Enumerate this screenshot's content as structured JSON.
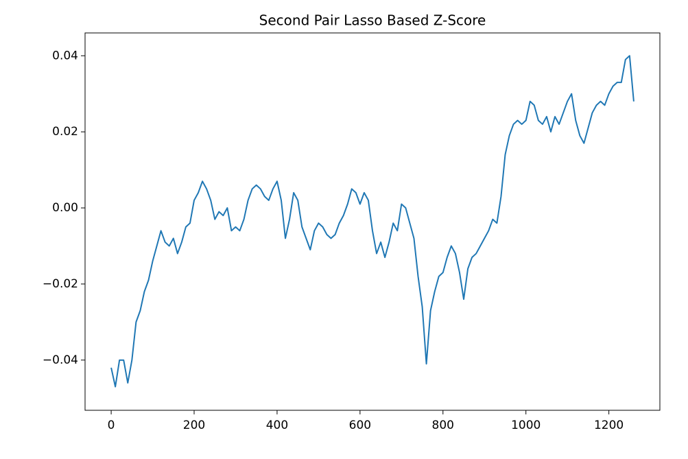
{
  "chart_data": {
    "type": "line",
    "title": "Second Pair Lasso Based Z-Score",
    "x": [
      0,
      10,
      20,
      30,
      40,
      50,
      60,
      70,
      80,
      90,
      100,
      110,
      120,
      130,
      140,
      150,
      160,
      170,
      180,
      190,
      200,
      210,
      220,
      230,
      240,
      250,
      260,
      270,
      280,
      290,
      300,
      310,
      320,
      330,
      340,
      350,
      360,
      370,
      380,
      390,
      400,
      410,
      420,
      430,
      440,
      450,
      460,
      470,
      480,
      490,
      500,
      510,
      520,
      530,
      540,
      550,
      560,
      570,
      580,
      590,
      600,
      610,
      620,
      630,
      640,
      650,
      660,
      670,
      680,
      690,
      700,
      710,
      720,
      730,
      740,
      750,
      760,
      770,
      780,
      790,
      800,
      810,
      820,
      830,
      840,
      850,
      860,
      870,
      880,
      890,
      900,
      910,
      920,
      930,
      940,
      950,
      960,
      970,
      980,
      990,
      1000,
      1010,
      1020,
      1030,
      1040,
      1050,
      1060,
      1070,
      1080,
      1090,
      1100,
      1110,
      1120,
      1130,
      1140,
      1150,
      1160,
      1170,
      1180,
      1190,
      1200,
      1210,
      1220,
      1230,
      1240,
      1250,
      1260
    ],
    "series": [
      {
        "color": "#1f77b4",
        "values": [
          -0.042,
          -0.047,
          -0.04,
          -0.04,
          -0.046,
          -0.04,
          -0.03,
          -0.027,
          -0.022,
          -0.019,
          -0.014,
          -0.01,
          -0.006,
          -0.009,
          -0.01,
          -0.008,
          -0.012,
          -0.009,
          -0.005,
          -0.004,
          0.002,
          0.004,
          0.007,
          0.005,
          0.002,
          -0.003,
          -0.001,
          -0.002,
          0.0,
          -0.006,
          -0.005,
          -0.006,
          -0.003,
          0.002,
          0.005,
          0.006,
          0.005,
          0.003,
          0.002,
          0.005,
          0.007,
          0.002,
          -0.008,
          -0.003,
          0.004,
          0.002,
          -0.005,
          -0.008,
          -0.011,
          -0.006,
          -0.004,
          -0.005,
          -0.007,
          -0.008,
          -0.007,
          -0.004,
          -0.002,
          0.001,
          0.005,
          0.004,
          0.001,
          0.004,
          0.002,
          -0.006,
          -0.012,
          -0.009,
          -0.013,
          -0.009,
          -0.004,
          -0.006,
          0.001,
          0.0,
          -0.004,
          -0.008,
          -0.018,
          -0.026,
          -0.041,
          -0.027,
          -0.022,
          -0.018,
          -0.017,
          -0.013,
          -0.01,
          -0.012,
          -0.017,
          -0.024,
          -0.016,
          -0.013,
          -0.012,
          -0.01,
          -0.008,
          -0.006,
          -0.003,
          -0.004,
          0.003,
          0.014,
          0.019,
          0.022,
          0.023,
          0.022,
          0.023,
          0.028,
          0.027,
          0.023,
          0.022,
          0.024,
          0.02,
          0.024,
          0.022,
          0.025,
          0.028,
          0.03,
          0.023,
          0.019,
          0.017,
          0.021,
          0.025,
          0.027,
          0.028,
          0.027,
          0.03,
          0.032,
          0.033,
          0.033,
          0.039,
          0.04,
          0.028
        ]
      }
    ],
    "xlim": [
      -63,
      1323
    ],
    "xticks": [
      0,
      200,
      400,
      600,
      800,
      1000,
      1200
    ],
    "ylim": [
      -0.0532,
      0.046
    ],
    "yticks": [
      {
        "value": -0.04,
        "label": "−0.04"
      },
      {
        "value": -0.02,
        "label": "−0.02"
      },
      {
        "value": 0,
        "label": "0.00"
      },
      0.02,
      0.04
    ]
  }
}
